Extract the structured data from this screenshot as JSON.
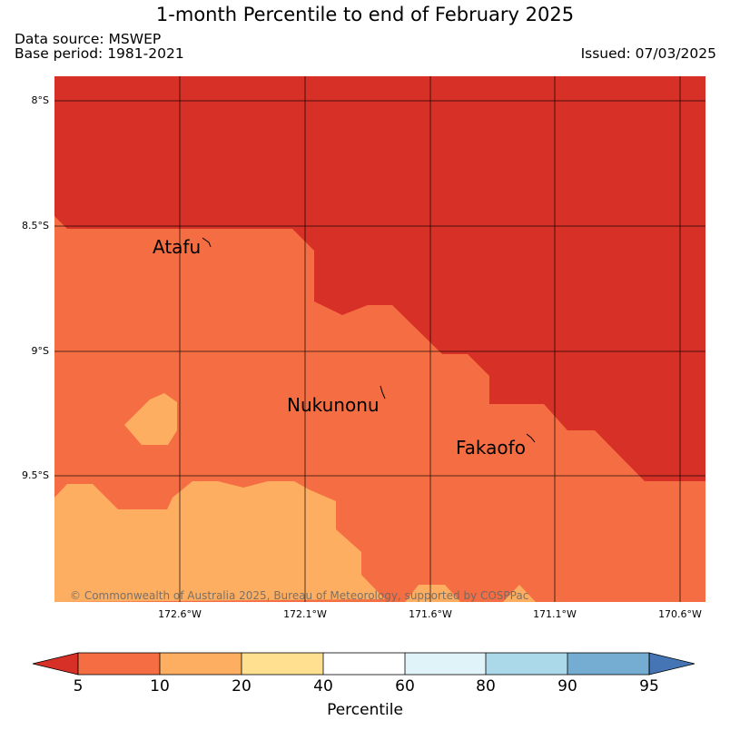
{
  "header": {
    "title": "1-month Percentile to end of February 2025",
    "source_line": "Data source: MSWEP",
    "base_line": "Base period: 1981-2021",
    "issued": "Issued: 07/03/2025"
  },
  "map": {
    "lat_labels": [
      "8°S",
      "8.5°S",
      "9°S",
      "9.5°S"
    ],
    "lon_labels": [
      "172.6°W",
      "172.1°W",
      "171.6°W",
      "171.1°W",
      "170.6°W"
    ],
    "places": [
      {
        "name": "Atafu"
      },
      {
        "name": "Nukunonu"
      },
      {
        "name": "Fakaofo"
      }
    ],
    "copyright": "© Commonwealth of Australia 2025, Bureau of Meteorology, supported by COSPPac",
    "colors": {
      "below_5": "#d73027",
      "p5_10": "#f46d43",
      "p10_20": "#fdae61"
    }
  },
  "colorbar": {
    "label": "Percentile",
    "ticks": [
      "5",
      "10",
      "20",
      "40",
      "60",
      "80",
      "90",
      "95"
    ],
    "colors": [
      "#f46d43",
      "#fdae61",
      "#fee090",
      "#ffffff",
      "#e0f3f8",
      "#abd9e9",
      "#74add1"
    ],
    "under_color": "#d73027",
    "over_color": "#4575b4"
  }
}
